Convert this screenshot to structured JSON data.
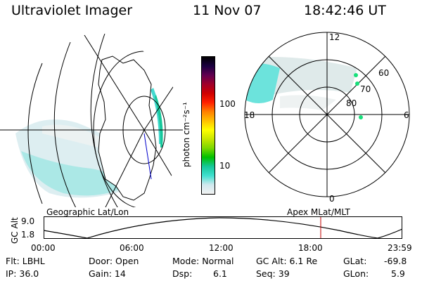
{
  "header": {
    "instrument": "Ultraviolet Imager",
    "date": "11 Nov 07",
    "time": "18:42:46 UT"
  },
  "colorbar": {
    "unit_label": "photon cm⁻²s⁻¹",
    "ticks": [
      "100",
      "10"
    ],
    "scale": "log",
    "colors": [
      "#f2f2f2",
      "#cfe8ee",
      "#3fe0cf",
      "#16c79a",
      "#00c000",
      "#7ad700",
      "#c8e600",
      "#ffff00",
      "#ffc000",
      "#ff8000",
      "#ff2000",
      "#d00000",
      "#a0002a",
      "#600050",
      "#1a0040",
      "#000000"
    ]
  },
  "polar_plot": {
    "labels": {
      "top": "12",
      "left": "18",
      "right": "6",
      "bottom": "0"
    },
    "lat_labels": [
      "60",
      "70",
      "80"
    ]
  },
  "captions": {
    "left": "Geographic Lat/Lon",
    "right": "Apex MLat/MLT"
  },
  "timeline": {
    "ylabel": "GC Alt",
    "yticks": [
      "9.0",
      "1.8"
    ],
    "xticks": [
      "00:00",
      "06:00",
      "12:00",
      "18:00",
      "23:59"
    ],
    "marker_color": "#c00000",
    "marker_time": "18:42"
  },
  "info": {
    "flt": "Flt: LBHL",
    "ip": "IP: 36.0",
    "door": "Door: Open",
    "gain": "Gain: 14",
    "mode": "Mode: Normal",
    "dsp_label": "Dsp:",
    "dsp_value": "6.1",
    "gcalt": "GC Alt: 6.1 Re",
    "seq": "Seq: 39",
    "glat_label": "GLat:",
    "glat_value": "-69.8",
    "glon_label": "GLon:",
    "glon_value": "5.9"
  }
}
